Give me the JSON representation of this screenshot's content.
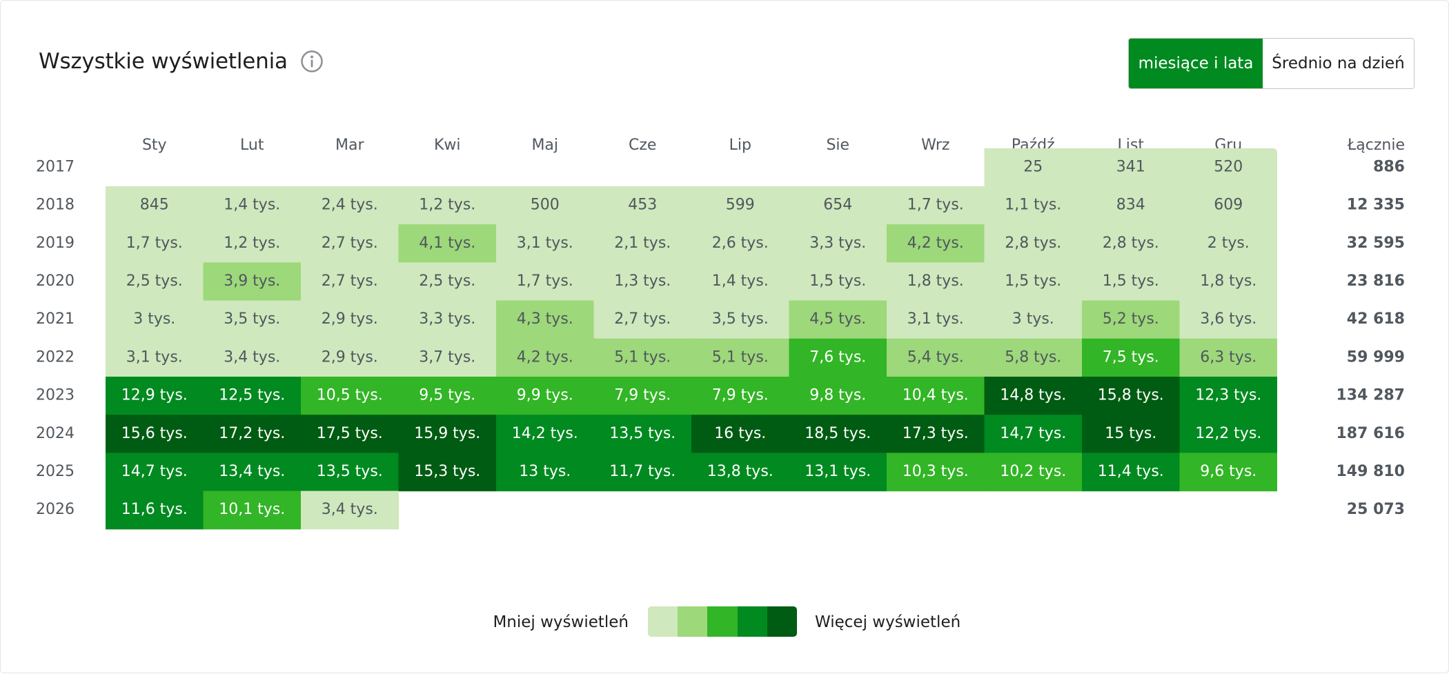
{
  "header": {
    "title": "Wszystkie wyświetlenia",
    "info_icon": "info-icon"
  },
  "toggle": {
    "options": [
      "miesiące i lata",
      "Średnio na dzień"
    ],
    "selected": "miesiące i lata"
  },
  "legend": {
    "less_label": "Mniej wyświetleń",
    "more_label": "Więcej wyświetleń",
    "colors": [
      "#cfe8bd",
      "#9dd87a",
      "#32b526",
      "#008a20",
      "#005c12"
    ]
  },
  "chart_data": {
    "type": "heatmap",
    "months": [
      "Sty",
      "Lut",
      "Mar",
      "Kwi",
      "Maj",
      "Cze",
      "Lip",
      "Sie",
      "Wrz",
      "Paźdź",
      "List",
      "Gru"
    ],
    "total_label": "Łącznie",
    "rows": [
      {
        "year": "2017",
        "values": [
          null,
          null,
          null,
          null,
          null,
          null,
          null,
          null,
          null,
          25,
          341,
          520
        ],
        "labels": [
          "",
          "",
          "",
          "",
          "",
          "",
          "",
          "",
          "",
          "25",
          "341",
          "520"
        ],
        "total": "886"
      },
      {
        "year": "2018",
        "values": [
          845,
          1400,
          2400,
          1200,
          500,
          453,
          599,
          654,
          1700,
          1100,
          834,
          609
        ],
        "labels": [
          "845",
          "1,4 tys.",
          "2,4 tys.",
          "1,2 tys.",
          "500",
          "453",
          "599",
          "654",
          "1,7 tys.",
          "1,1 tys.",
          "834",
          "609"
        ],
        "total": "12 335"
      },
      {
        "year": "2019",
        "values": [
          1700,
          1200,
          2700,
          4100,
          3100,
          2100,
          2600,
          3300,
          4200,
          2800,
          2800,
          2000
        ],
        "labels": [
          "1,7 tys.",
          "1,2 tys.",
          "2,7 tys.",
          "4,1 tys.",
          "3,1 tys.",
          "2,1 tys.",
          "2,6 tys.",
          "3,3 tys.",
          "4,2 tys.",
          "2,8 tys.",
          "2,8 tys.",
          "2 tys."
        ],
        "total": "32 595"
      },
      {
        "year": "2020",
        "values": [
          2500,
          3900,
          2700,
          2500,
          1700,
          1300,
          1400,
          1500,
          1800,
          1500,
          1500,
          1800
        ],
        "labels": [
          "2,5 tys.",
          "3,9 tys.",
          "2,7 tys.",
          "2,5 tys.",
          "1,7 tys.",
          "1,3 tys.",
          "1,4 tys.",
          "1,5 tys.",
          "1,8 tys.",
          "1,5 tys.",
          "1,5 tys.",
          "1,8 tys."
        ],
        "total": "23 816"
      },
      {
        "year": "2021",
        "values": [
          3000,
          3500,
          2900,
          3300,
          4300,
          2700,
          3500,
          4500,
          3100,
          3000,
          5200,
          3600
        ],
        "labels": [
          "3 tys.",
          "3,5 tys.",
          "2,9 tys.",
          "3,3 tys.",
          "4,3 tys.",
          "2,7 tys.",
          "3,5 tys.",
          "4,5 tys.",
          "3,1 tys.",
          "3 tys.",
          "5,2 tys.",
          "3,6 tys."
        ],
        "total": "42 618"
      },
      {
        "year": "2022",
        "values": [
          3100,
          3400,
          2900,
          3700,
          4200,
          5100,
          5100,
          7600,
          5400,
          5800,
          7500,
          6300
        ],
        "labels": [
          "3,1 tys.",
          "3,4 tys.",
          "2,9 tys.",
          "3,7 tys.",
          "4,2 tys.",
          "5,1 tys.",
          "5,1 tys.",
          "7,6 tys.",
          "5,4 tys.",
          "5,8 tys.",
          "7,5 tys.",
          "6,3 tys."
        ],
        "total": "59 999"
      },
      {
        "year": "2023",
        "values": [
          12900,
          12500,
          10500,
          9500,
          9900,
          7900,
          7900,
          9800,
          10400,
          14800,
          15800,
          12300
        ],
        "labels": [
          "12,9 tys.",
          "12,5 tys.",
          "10,5 tys.",
          "9,5 tys.",
          "9,9 tys.",
          "7,9 tys.",
          "7,9 tys.",
          "9,8 tys.",
          "10,4 tys.",
          "14,8 tys.",
          "15,8 tys.",
          "12,3 tys."
        ],
        "total": "134 287"
      },
      {
        "year": "2024",
        "values": [
          15600,
          17200,
          17500,
          15900,
          14200,
          13500,
          16000,
          18500,
          17300,
          14700,
          15000,
          12200
        ],
        "labels": [
          "15,6 tys.",
          "17,2 tys.",
          "17,5 tys.",
          "15,9 tys.",
          "14,2 tys.",
          "13,5 tys.",
          "16 tys.",
          "18,5 tys.",
          "17,3 tys.",
          "14,7 tys.",
          "15 tys.",
          "12,2 tys."
        ],
        "total": "187 616"
      },
      {
        "year": "2025",
        "values": [
          14700,
          13400,
          13500,
          15300,
          13000,
          11700,
          13800,
          13100,
          10300,
          10200,
          11400,
          9600
        ],
        "labels": [
          "14,7 tys.",
          "13,4 tys.",
          "13,5 tys.",
          "15,3 tys.",
          "13 tys.",
          "11,7 tys.",
          "13,8 tys.",
          "13,1 tys.",
          "10,3 tys.",
          "10,2 tys.",
          "11,4 tys.",
          "9,6 tys."
        ],
        "total": "149 810"
      },
      {
        "year": "2026",
        "values": [
          11600,
          10100,
          3400,
          null,
          null,
          null,
          null,
          null,
          null,
          null,
          null,
          null
        ],
        "labels": [
          "11,6 tys.",
          "10,1 tys.",
          "3,4 tys.",
          "",
          "",
          "",
          "",
          "",
          "",
          "",
          "",
          ""
        ],
        "total": "25 073"
      }
    ],
    "shade_levels": [
      [
        null,
        null,
        null,
        null,
        null,
        null,
        null,
        null,
        null,
        0,
        0,
        0
      ],
      [
        0,
        0,
        0,
        0,
        0,
        0,
        0,
        0,
        0,
        0,
        0,
        0
      ],
      [
        0,
        0,
        0,
        1,
        0,
        0,
        0,
        0,
        1,
        0,
        0,
        0
      ],
      [
        0,
        1,
        0,
        0,
        0,
        0,
        0,
        0,
        0,
        0,
        0,
        0
      ],
      [
        0,
        0,
        0,
        0,
        1,
        0,
        0,
        1,
        0,
        0,
        1,
        0
      ],
      [
        0,
        0,
        0,
        0,
        1,
        1,
        1,
        2,
        1,
        1,
        2,
        1
      ],
      [
        3,
        3,
        2,
        2,
        2,
        2,
        2,
        2,
        2,
        4,
        4,
        3
      ],
      [
        4,
        4,
        4,
        4,
        3,
        3,
        4,
        4,
        4,
        3,
        4,
        3
      ],
      [
        3,
        3,
        3,
        4,
        3,
        3,
        3,
        3,
        2,
        2,
        3,
        2
      ],
      [
        3,
        2,
        0,
        null,
        null,
        null,
        null,
        null,
        null,
        null,
        null,
        null
      ]
    ]
  }
}
